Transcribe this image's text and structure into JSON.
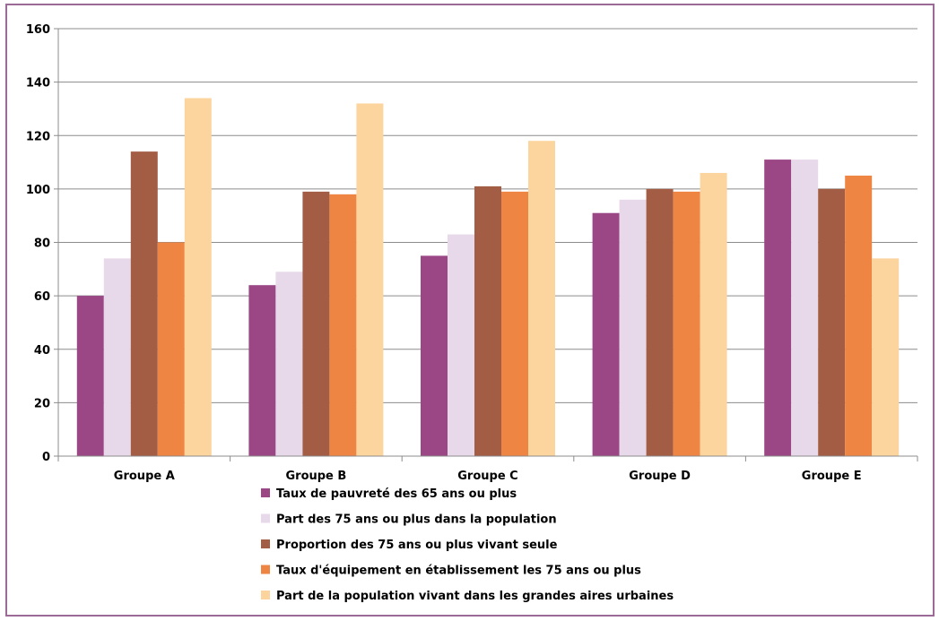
{
  "chart_data": {
    "type": "bar",
    "title": "",
    "xlabel": "",
    "ylabel": "",
    "ylim": [
      0,
      160
    ],
    "yticks": [
      0,
      20,
      40,
      60,
      80,
      100,
      120,
      140,
      160
    ],
    "grid": true,
    "legend_position": "bottom",
    "categories": [
      "Groupe A",
      "Groupe B",
      "Groupe C",
      "Groupe D",
      "Groupe E"
    ],
    "series": [
      {
        "name": "Taux de pauvreté des 65 ans ou plus",
        "color": "#9b4786",
        "values": [
          60,
          64,
          75,
          91,
          111
        ]
      },
      {
        "name": "Part des 75 ans ou plus dans la population",
        "color": "#e8d9ea",
        "values": [
          74,
          69,
          83,
          96,
          111
        ]
      },
      {
        "name": "Proportion des 75 ans ou plus vivant seule",
        "color": "#a35d45",
        "values": [
          114,
          99,
          101,
          100,
          100
        ]
      },
      {
        "name": "Taux d'équipement en établissement les 75 ans ou plus",
        "color": "#ef8542",
        "values": [
          80,
          98,
          99,
          99,
          105
        ]
      },
      {
        "name": "Part de la population vivant dans les grandes aires urbaines",
        "color": "#fbd49e",
        "values": [
          134,
          132,
          118,
          106,
          74
        ]
      }
    ]
  }
}
